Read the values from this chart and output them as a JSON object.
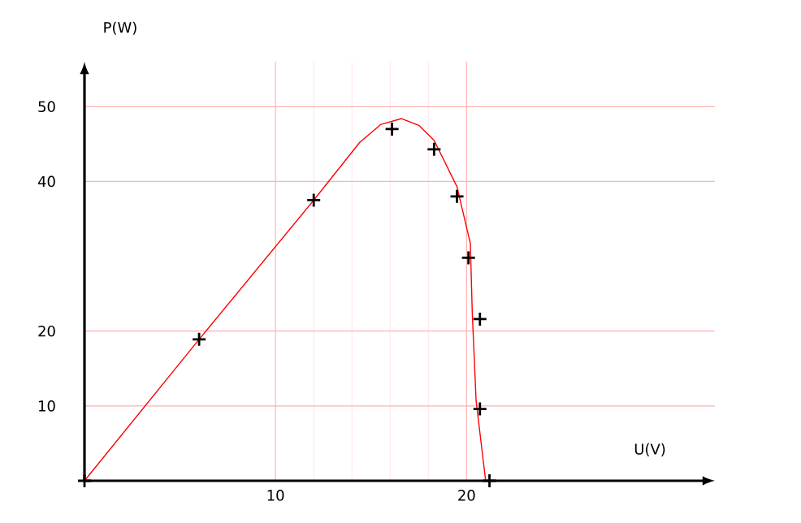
{
  "chart_data": {
    "type": "scatter",
    "xlabel": "U(V)",
    "ylabel": "P(W)",
    "xlim": [
      0,
      33
    ],
    "ylim": [
      0,
      56
    ],
    "xticks": [
      10,
      20
    ],
    "yticks": [
      10,
      20,
      40,
      50
    ],
    "grid": true,
    "series": [
      {
        "marker": "cross",
        "color": "#000000",
        "x": [
          0,
          6.0,
          12.0,
          16.1,
          18.3,
          19.5,
          20.1,
          20.7,
          20.7,
          21.2
        ],
        "values": [
          0,
          18.9,
          37.5,
          47,
          44.3,
          38,
          29.8,
          21.6,
          9.6,
          0
        ]
      },
      {
        "type": "line",
        "color": "#ff0000",
        "x": [
          0,
          6,
          12,
          14.4,
          15.5,
          16.6,
          17.5,
          18.3,
          19.5,
          20.2,
          20.3,
          20.5,
          21.0
        ],
        "values": [
          0,
          18.9,
          37.5,
          45.2,
          47.6,
          48.4,
          47.5,
          45.5,
          39.3,
          31.7,
          22.4,
          10.7,
          0
        ]
      }
    ]
  }
}
